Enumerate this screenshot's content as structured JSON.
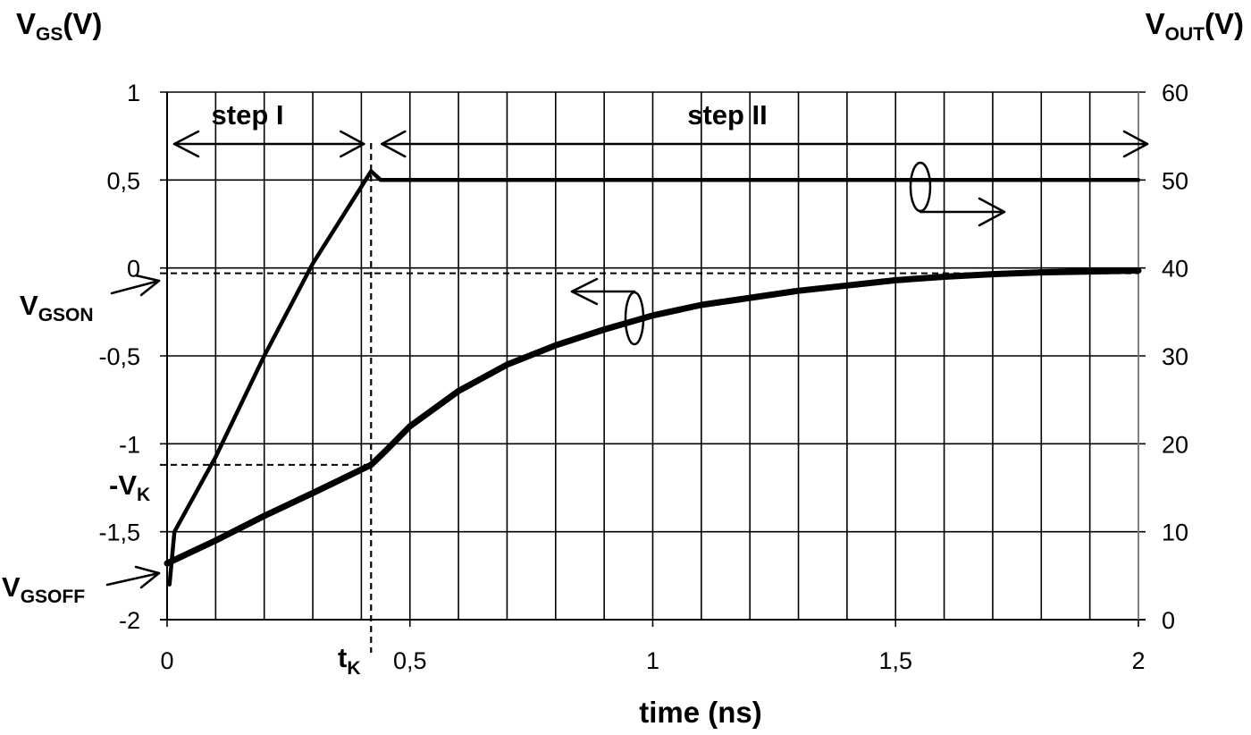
{
  "chart_data": {
    "type": "line",
    "xlabel": "time (ns)",
    "ylabel_left": {
      "main": "V",
      "sub": "GS",
      "unit": "(V)"
    },
    "ylabel_right": {
      "main": "V",
      "sub": "OUT",
      "unit": "(V)"
    },
    "x_ticks": [
      "0",
      "0,5",
      "1",
      "1,5",
      "2"
    ],
    "x_tick_values": [
      0,
      0.5,
      1,
      1.5,
      2
    ],
    "xlim": [
      0,
      2
    ],
    "y_left_ticks": [
      "1",
      "0,5",
      "0",
      "-0,5",
      "-1",
      "-1,5",
      "-2"
    ],
    "y_left_tick_values": [
      1,
      0.5,
      0,
      -0.5,
      -1,
      -1.5,
      -2
    ],
    "ylim_left": [
      -2,
      1
    ],
    "y_right_ticks": [
      "60",
      "50",
      "40",
      "30",
      "20",
      "10",
      "0"
    ],
    "y_right_tick_values": [
      60,
      50,
      40,
      30,
      20,
      10,
      0
    ],
    "ylim_right": [
      0,
      60
    ],
    "grid": "vertical every 0.1 ns; horizontal at major ticks",
    "series": [
      {
        "axis": "left",
        "points": [
          [
            0,
            -1.68
          ],
          [
            0.1,
            -1.55
          ],
          [
            0.2,
            -1.41
          ],
          [
            0.3,
            -1.28
          ],
          [
            0.42,
            -1.12
          ],
          [
            0.45,
            -1.04
          ],
          [
            0.5,
            -0.9
          ],
          [
            0.6,
            -0.7
          ],
          [
            0.7,
            -0.55
          ],
          [
            0.8,
            -0.44
          ],
          [
            0.9,
            -0.35
          ],
          [
            1.0,
            -0.27
          ],
          [
            1.1,
            -0.21
          ],
          [
            1.2,
            -0.17
          ],
          [
            1.3,
            -0.13
          ],
          [
            1.4,
            -0.1
          ],
          [
            1.5,
            -0.07
          ],
          [
            1.6,
            -0.05
          ],
          [
            1.7,
            -0.035
          ],
          [
            1.8,
            -0.025
          ],
          [
            1.9,
            -0.02
          ],
          [
            2.0,
            -0.015
          ]
        ]
      },
      {
        "axis": "right",
        "points": [
          [
            0.005,
            4
          ],
          [
            0.015,
            10
          ],
          [
            0.1,
            18.5
          ],
          [
            0.2,
            30
          ],
          [
            0.3,
            40.5
          ],
          [
            0.42,
            51
          ],
          [
            0.44,
            50
          ],
          [
            1.0,
            50
          ],
          [
            1.5,
            50
          ],
          [
            2.0,
            50
          ]
        ]
      }
    ],
    "reference_levels": {
      "V_GSON": -0.03,
      "minus_V_K": -1.12,
      "t_K": 0.42,
      "V_GSOFF": -1.68
    },
    "annotations": {
      "step1": "step I",
      "step2": "step II",
      "vgson": {
        "main": "V",
        "sub": "GSON"
      },
      "vk": {
        "main": "-V",
        "sub": "K"
      },
      "vgsoff": {
        "main": "V",
        "sub": "GSOFF"
      },
      "tk": {
        "main": "t",
        "sub": "K"
      }
    }
  }
}
